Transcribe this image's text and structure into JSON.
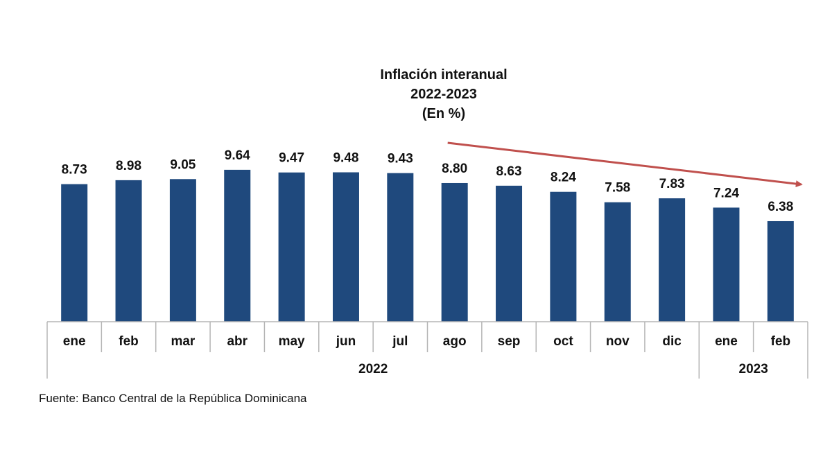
{
  "chart_data": {
    "type": "bar",
    "title_lines": [
      "Inflación interanual",
      "2022-2023",
      "(En %)"
    ],
    "categories": [
      "ene",
      "feb",
      "mar",
      "abr",
      "may",
      "jun",
      "jul",
      "ago",
      "sep",
      "oct",
      "nov",
      "dic",
      "ene",
      "feb"
    ],
    "values": [
      8.73,
      8.98,
      9.05,
      9.64,
      9.47,
      9.48,
      9.43,
      8.8,
      8.63,
      8.24,
      7.58,
      7.83,
      7.24,
      6.38
    ],
    "value_labels": [
      "8.73",
      "8.98",
      "9.05",
      "9.64",
      "9.47",
      "9.48",
      "9.43",
      "8.80",
      "8.63",
      "8.24",
      "7.58",
      "7.83",
      "7.24",
      "6.38"
    ],
    "year_groups": [
      {
        "label": "2022",
        "count": 12
      },
      {
        "label": "2023",
        "count": 2
      }
    ],
    "ylim": [
      0,
      10
    ],
    "grid": false,
    "bar_color": "#1F497D",
    "annotation": {
      "type": "trend-arrow",
      "direction": "downward",
      "from_category_index": 7,
      "to_category_index": 13,
      "color": "#C0504D"
    }
  },
  "source": "Fuente: Banco Central de la República Dominicana"
}
